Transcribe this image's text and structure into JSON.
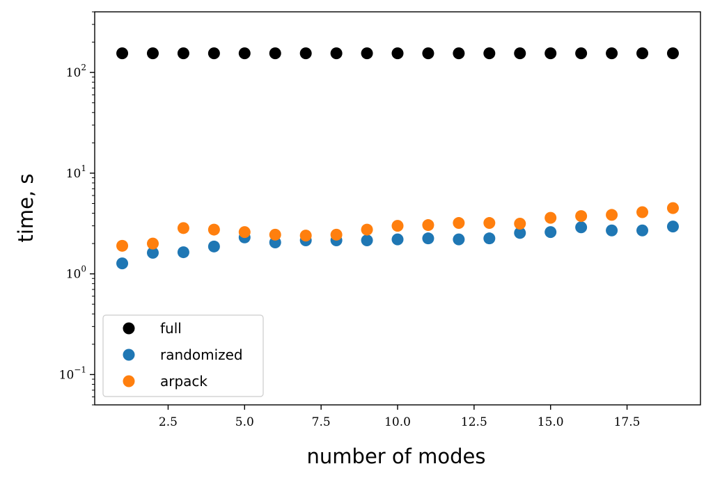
{
  "chart_data": {
    "type": "scatter",
    "title": "",
    "xlabel": "number of modes",
    "ylabel": "time, s",
    "yscale": "log",
    "xlim": [
      0.1,
      19.9
    ],
    "ylim": [
      0.05,
      400
    ],
    "x_ticks": [
      2.5,
      5.0,
      7.5,
      10.0,
      12.5,
      15.0,
      17.5
    ],
    "x_tick_labels": [
      "2.5",
      "5.0",
      "7.5",
      "10.0",
      "12.5",
      "15.0",
      "17.5"
    ],
    "y_ticks": [
      {
        "value": 100,
        "base": "10",
        "exp": "2"
      },
      {
        "value": 10,
        "base": "10",
        "exp": "1"
      },
      {
        "value": 1,
        "base": "10",
        "exp": "0"
      },
      {
        "value": 0.1,
        "base": "10",
        "exp": "−1"
      }
    ],
    "grid": false,
    "legend_position": "lower-left",
    "x": [
      1,
      2,
      3,
      4,
      5,
      6,
      7,
      8,
      9,
      10,
      11,
      12,
      13,
      14,
      15,
      16,
      17,
      18,
      19
    ],
    "series": [
      {
        "name": "full",
        "color": "#000000",
        "values": [
          155,
          155,
          155,
          155,
          155,
          155,
          155,
          155,
          155,
          155,
          155,
          155,
          155,
          155,
          155,
          155,
          155,
          155,
          155
        ]
      },
      {
        "name": "randomized",
        "color": "#1f77b4",
        "values": [
          1.27,
          1.62,
          1.64,
          1.87,
          2.3,
          2.05,
          2.15,
          2.15,
          2.15,
          2.2,
          2.25,
          2.2,
          2.25,
          2.55,
          2.6,
          2.9,
          2.7,
          2.7,
          2.95
        ]
      },
      {
        "name": "arpack",
        "color": "#ff7f0e",
        "values": [
          1.9,
          2.0,
          2.85,
          2.75,
          2.6,
          2.45,
          2.4,
          2.45,
          2.75,
          3.0,
          3.05,
          3.2,
          3.2,
          3.15,
          3.6,
          3.75,
          3.85,
          4.1,
          4.5
        ]
      }
    ]
  }
}
